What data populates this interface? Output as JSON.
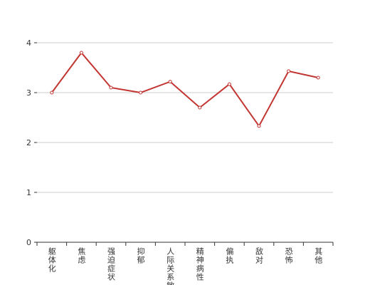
{
  "chart_data": {
    "type": "line",
    "categories": [
      "躯体化",
      "焦虑",
      "强迫症状",
      "抑郁",
      "人际关系敏感",
      "精神病性",
      "偏执",
      "敌对",
      "恐怖",
      "其他"
    ],
    "values": [
      3.0,
      3.8,
      3.1,
      3.0,
      3.22,
      2.7,
      3.17,
      2.33,
      3.43,
      3.3
    ],
    "color": "#c23531",
    "ylim": [
      0,
      4
    ],
    "yticks": [
      0,
      1,
      2,
      3,
      4
    ],
    "grid": true
  }
}
